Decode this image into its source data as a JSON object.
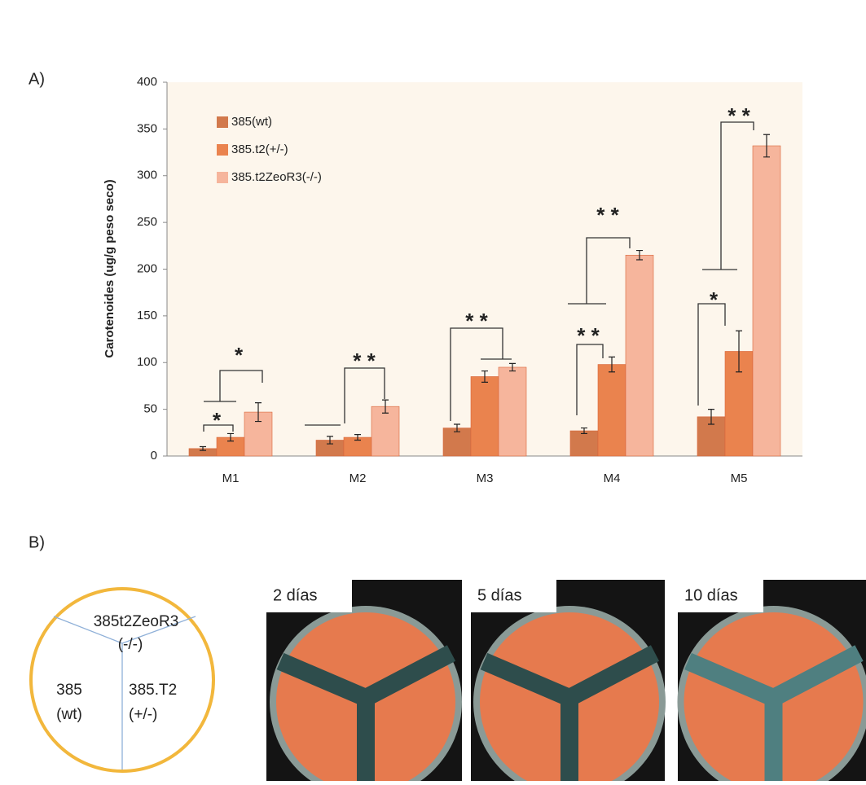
{
  "panel_labels": [
    "A)",
    "B)"
  ],
  "chart_data": {
    "type": "bar",
    "y_label": "Carotenoides (ug/g peso seco)",
    "categories": [
      "M1",
      "M2",
      "M3",
      "M4",
      "M5"
    ],
    "series": [
      {
        "name": "385(wt)",
        "color": "#d2794c",
        "values": [
          8,
          17,
          30,
          27,
          42
        ],
        "errors": [
          2,
          4,
          4,
          3,
          8
        ]
      },
      {
        "name": "385.t2(+/-)",
        "color": "#ea834e",
        "values": [
          20,
          20,
          85,
          98,
          112
        ],
        "errors": [
          4,
          3,
          6,
          8,
          22
        ]
      },
      {
        "name": "385.t2ZeoR3(-/-)",
        "color": "#f6b59c",
        "values": [
          47,
          53,
          95,
          215,
          332
        ],
        "errors": [
          10,
          7,
          4,
          5,
          12
        ]
      }
    ],
    "ylim": [
      0,
      400
    ],
    "yticks": [
      0,
      50,
      100,
      150,
      200,
      250,
      300,
      350,
      400
    ],
    "legend": "upper left",
    "annotations": [
      "*",
      "*",
      "* *",
      "* *",
      "* *",
      "* *",
      "*",
      "* *"
    ]
  },
  "diagram": {
    "labels": [
      "385t2ZeoR3",
      "(-/-)",
      "385",
      "(wt)",
      "385.T2",
      "(+/-)"
    ]
  },
  "photos": [
    "2 días",
    "5 días",
    "10 días"
  ]
}
